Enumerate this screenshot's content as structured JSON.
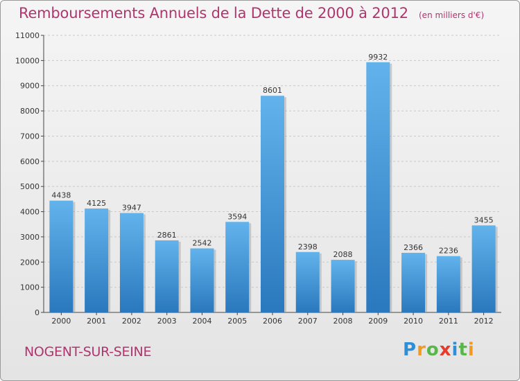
{
  "title": "Remboursements Annuels de la Dette de 2000 à 2012",
  "unit": "(en milliers d'€)",
  "commune": "NOGENT-SUR-SEINE",
  "logo": {
    "letters": [
      "P",
      "r",
      "o",
      "x",
      "i",
      "t",
      "i"
    ],
    "colors": [
      "#2e8fd8",
      "#f29a1f",
      "#59b64a",
      "#e83a2a",
      "#2e8fd8",
      "#59b64a",
      "#f29a1f"
    ]
  },
  "colors": {
    "bar_top": "#62b3ec",
    "bar_bottom": "#2a78bd",
    "axis": "#444444",
    "grid": "#c8c8c8",
    "title": "#b0356e"
  },
  "chart_data": {
    "type": "bar",
    "categories": [
      "2000",
      "2001",
      "2002",
      "2003",
      "2004",
      "2005",
      "2006",
      "2007",
      "2008",
      "2009",
      "2010",
      "2011",
      "2012"
    ],
    "values": [
      4438,
      4125,
      3947,
      2861,
      2542,
      3594,
      8601,
      2398,
      2088,
      9932,
      2366,
      2236,
      3455
    ],
    "ylim": [
      0,
      11000
    ],
    "yticks": [
      0,
      1000,
      2000,
      3000,
      4000,
      5000,
      6000,
      7000,
      8000,
      9000,
      10000,
      11000
    ],
    "grid": true,
    "data_labels": true
  }
}
